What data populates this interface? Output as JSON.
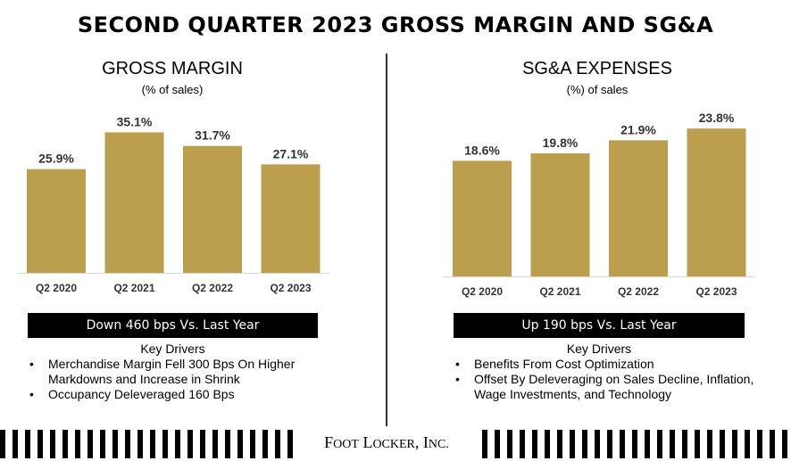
{
  "title": "SECOND QUARTER 2023 GROSS MARGIN AND SG&A",
  "left": {
    "heading": "GROSS MARGIN",
    "subheading": "(% of sales)",
    "banner": "Down 460 bps Vs. Last Year",
    "drivers_title": "Key Drivers",
    "drivers": [
      "Merchandise Margin Fell 300 Bps On Higher Markdowns and Increase in Shrink",
      "Occupancy Deleveraged 160 Bps"
    ]
  },
  "right": {
    "heading": "SG&A EXPENSES",
    "subheading": "(%) of sales",
    "banner": "Up 190 bps Vs. Last Year",
    "drivers_title": "Key Drivers",
    "drivers": [
      "Benefits From Cost Optimization",
      "Offset By Deleveraging on Sales Decline, Inflation, Wage Investments, and Technology"
    ]
  },
  "logo": {
    "first_F": "F",
    "first_rest": "OOT",
    "second_L": "L",
    "second_rest": "OCKER",
    "third_I": "I",
    "third_rest": "NC."
  },
  "colors": {
    "bar": "#bc9e4f",
    "banner": "#000000"
  },
  "chart_data": [
    {
      "type": "bar",
      "title": "GROSS MARGIN",
      "subtitle": "(% of sales)",
      "categories": [
        "Q2 2020",
        "Q2 2021",
        "Q2 2022",
        "Q2 2023"
      ],
      "values": [
        25.9,
        35.1,
        31.7,
        27.1
      ],
      "labels": [
        "25.9%",
        "35.1%",
        "31.7%",
        "27.1%"
      ],
      "ylim": [
        0,
        40
      ],
      "grid": false,
      "legend": "none"
    },
    {
      "type": "bar",
      "title": "SG&A EXPENSES",
      "subtitle": "(%) of sales",
      "categories": [
        "Q2 2020",
        "Q2 2021",
        "Q2 2022",
        "Q2 2023"
      ],
      "values": [
        18.6,
        19.8,
        21.9,
        23.8
      ],
      "labels": [
        "18.6%",
        "19.8%",
        "21.9%",
        "23.8%"
      ],
      "ylim": [
        0,
        30
      ],
      "grid": false,
      "legend": "none"
    }
  ]
}
